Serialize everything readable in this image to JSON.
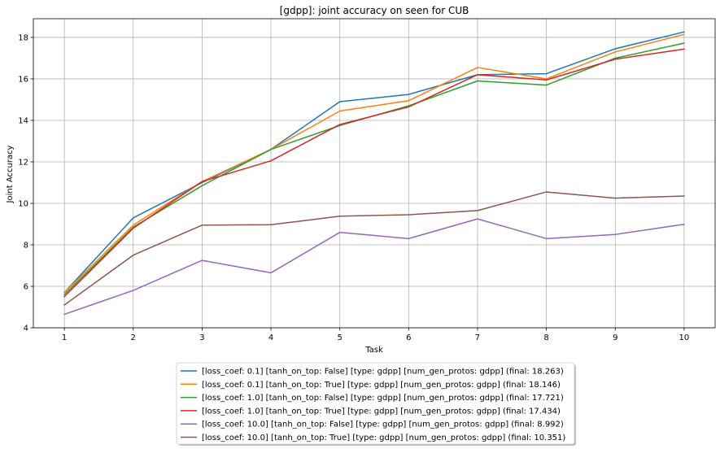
{
  "chart_data": {
    "type": "line",
    "title": "[gdpp]: joint accuracy on seen for CUB",
    "xlabel": "Task",
    "ylabel": "Joint Accuracy",
    "x": [
      1,
      2,
      3,
      4,
      5,
      6,
      7,
      8,
      9,
      10
    ],
    "xlim": [
      0.55,
      10.45
    ],
    "ylim": [
      4,
      18.9
    ],
    "xticks": [
      1,
      2,
      3,
      4,
      5,
      6,
      7,
      8,
      9,
      10
    ],
    "yticks": [
      4,
      6,
      8,
      10,
      12,
      14,
      16,
      18
    ],
    "grid": true,
    "legend_position": "below-center",
    "series": [
      {
        "name": "[loss_coef: 0.1] [tanh_on_top: False] [type: gdpp] [num_gen_protos: gdpp] (final:  18.263)",
        "color": "#1f77b4",
        "values": [
          5.7,
          9.3,
          11.0,
          12.6,
          14.9,
          15.25,
          16.2,
          16.25,
          17.45,
          18.263
        ]
      },
      {
        "name": "[loss_coef: 0.1] [tanh_on_top: True] [type: gdpp] [num_gen_protos: gdpp] (final:  18.146)",
        "color": "#ff7f0e",
        "values": [
          5.7,
          8.95,
          11.05,
          12.6,
          14.45,
          14.95,
          16.55,
          16.0,
          17.3,
          18.146
        ]
      },
      {
        "name": "[loss_coef: 1.0] [tanh_on_top: False] [type: gdpp] [num_gen_protos: gdpp] (final:  17.721)",
        "color": "#2ca02c",
        "values": [
          5.6,
          8.85,
          10.85,
          12.6,
          13.75,
          14.7,
          15.9,
          15.7,
          17.0,
          17.721
        ]
      },
      {
        "name": "[loss_coef: 1.0] [tanh_on_top: True] [type: gdpp] [num_gen_protos: gdpp] (final:  17.434)",
        "color": "#d62728",
        "values": [
          5.5,
          8.8,
          11.05,
          12.05,
          13.8,
          14.65,
          16.2,
          15.95,
          16.95,
          17.434
        ]
      },
      {
        "name": "[loss_coef: 10.0] [tanh_on_top: False] [type: gdpp] [num_gen_protos: gdpp] (final:  8.992)",
        "color": "#9467bd",
        "values": [
          4.65,
          5.8,
          7.25,
          6.65,
          8.6,
          8.3,
          9.25,
          8.3,
          8.5,
          8.992
        ]
      },
      {
        "name": "[loss_coef: 10.0] [tanh_on_top: True] [type: gdpp] [num_gen_protos: gdpp] (final:  10.351)",
        "color": "#8c564b",
        "values": [
          5.1,
          7.5,
          8.95,
          8.97,
          9.38,
          9.45,
          9.65,
          10.55,
          10.25,
          10.351
        ]
      }
    ]
  }
}
